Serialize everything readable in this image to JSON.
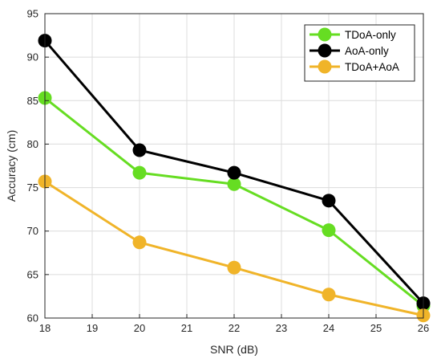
{
  "chart_data": {
    "type": "line",
    "title": "",
    "xlabel": "SNR (dB)",
    "ylabel": "Accuracy (cm)",
    "xlim": [
      18,
      26
    ],
    "ylim": [
      60,
      95
    ],
    "xticks": [
      18,
      19,
      20,
      21,
      22,
      23,
      24,
      25,
      26
    ],
    "yticks": [
      60,
      65,
      70,
      75,
      80,
      85,
      90,
      95
    ],
    "grid": true,
    "legend": "top-right",
    "x": [
      18,
      20,
      22,
      24,
      26
    ],
    "series": [
      {
        "name": "TDoA-only",
        "color": "#66dd22",
        "values": [
          85.3,
          76.7,
          75.4,
          70.1,
          61.4
        ]
      },
      {
        "name": "AoA-only",
        "color": "#000000",
        "values": [
          91.9,
          79.3,
          76.7,
          73.5,
          61.7
        ]
      },
      {
        "name": "TDoA+AoA",
        "color": "#f0b429",
        "values": [
          75.7,
          68.7,
          65.8,
          62.7,
          60.3
        ]
      }
    ]
  }
}
